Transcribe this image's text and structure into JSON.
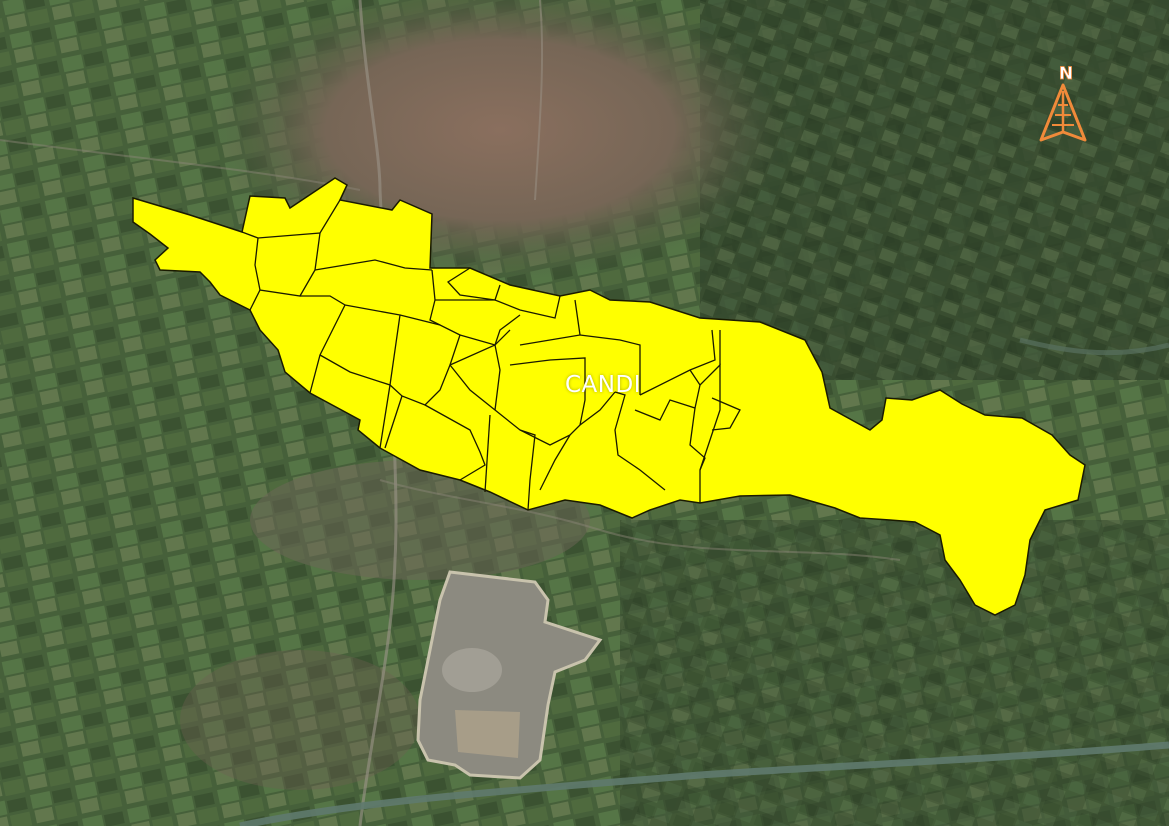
{
  "map": {
    "region_label": "CANDI",
    "highlight_color": "#ffff00",
    "boundary_color": "#1a1a00",
    "north_arrow": {
      "letter": "N",
      "color": "#f08a3a",
      "icon": "north-arrow-icon"
    },
    "basemap": "satellite-imagery"
  }
}
